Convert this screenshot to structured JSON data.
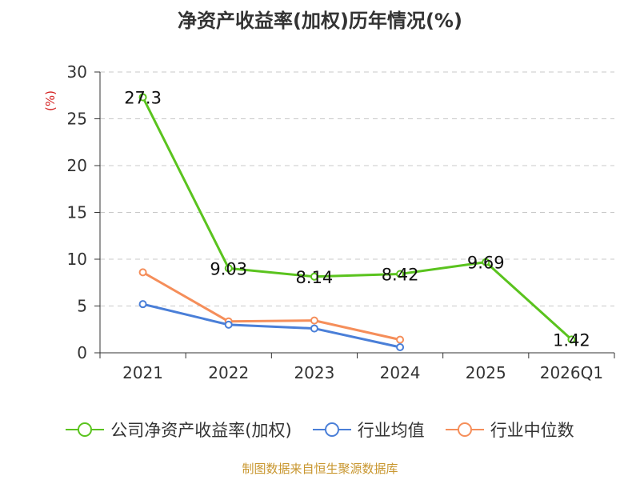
{
  "title": "净资产收益率(加权)历年情况(%)",
  "source": "制图数据来自恒生聚源数据库",
  "colors": {
    "company": "#5ac31e",
    "avg": "#4a7fd8",
    "median": "#f58e5a",
    "source": "#c8962e",
    "ylabel": "#d42020"
  },
  "chart_data": {
    "type": "line",
    "categories": [
      "2021",
      "2022",
      "2023",
      "2024",
      "2025",
      "2026Q1"
    ],
    "ylabel": "(%)",
    "ylim": [
      0,
      30
    ],
    "yticks": [
      "0",
      "5",
      "10",
      "15",
      "20",
      "25",
      "30"
    ],
    "grid": true,
    "legend_position": "bottom",
    "series": [
      {
        "name": "公司净资产收益率(加权)",
        "key": "company",
        "values": [
          27.3,
          9.03,
          8.14,
          8.42,
          9.69,
          1.42
        ],
        "labels": [
          "27.3",
          "9.03",
          "8.14",
          "8.42",
          "9.69",
          "1.42"
        ]
      },
      {
        "name": "行业均值",
        "key": "avg",
        "values": [
          5.2,
          3.0,
          2.6,
          0.6,
          null,
          null
        ]
      },
      {
        "name": "行业中位数",
        "key": "median",
        "values": [
          8.6,
          3.35,
          3.45,
          1.4,
          null,
          null
        ]
      }
    ]
  }
}
